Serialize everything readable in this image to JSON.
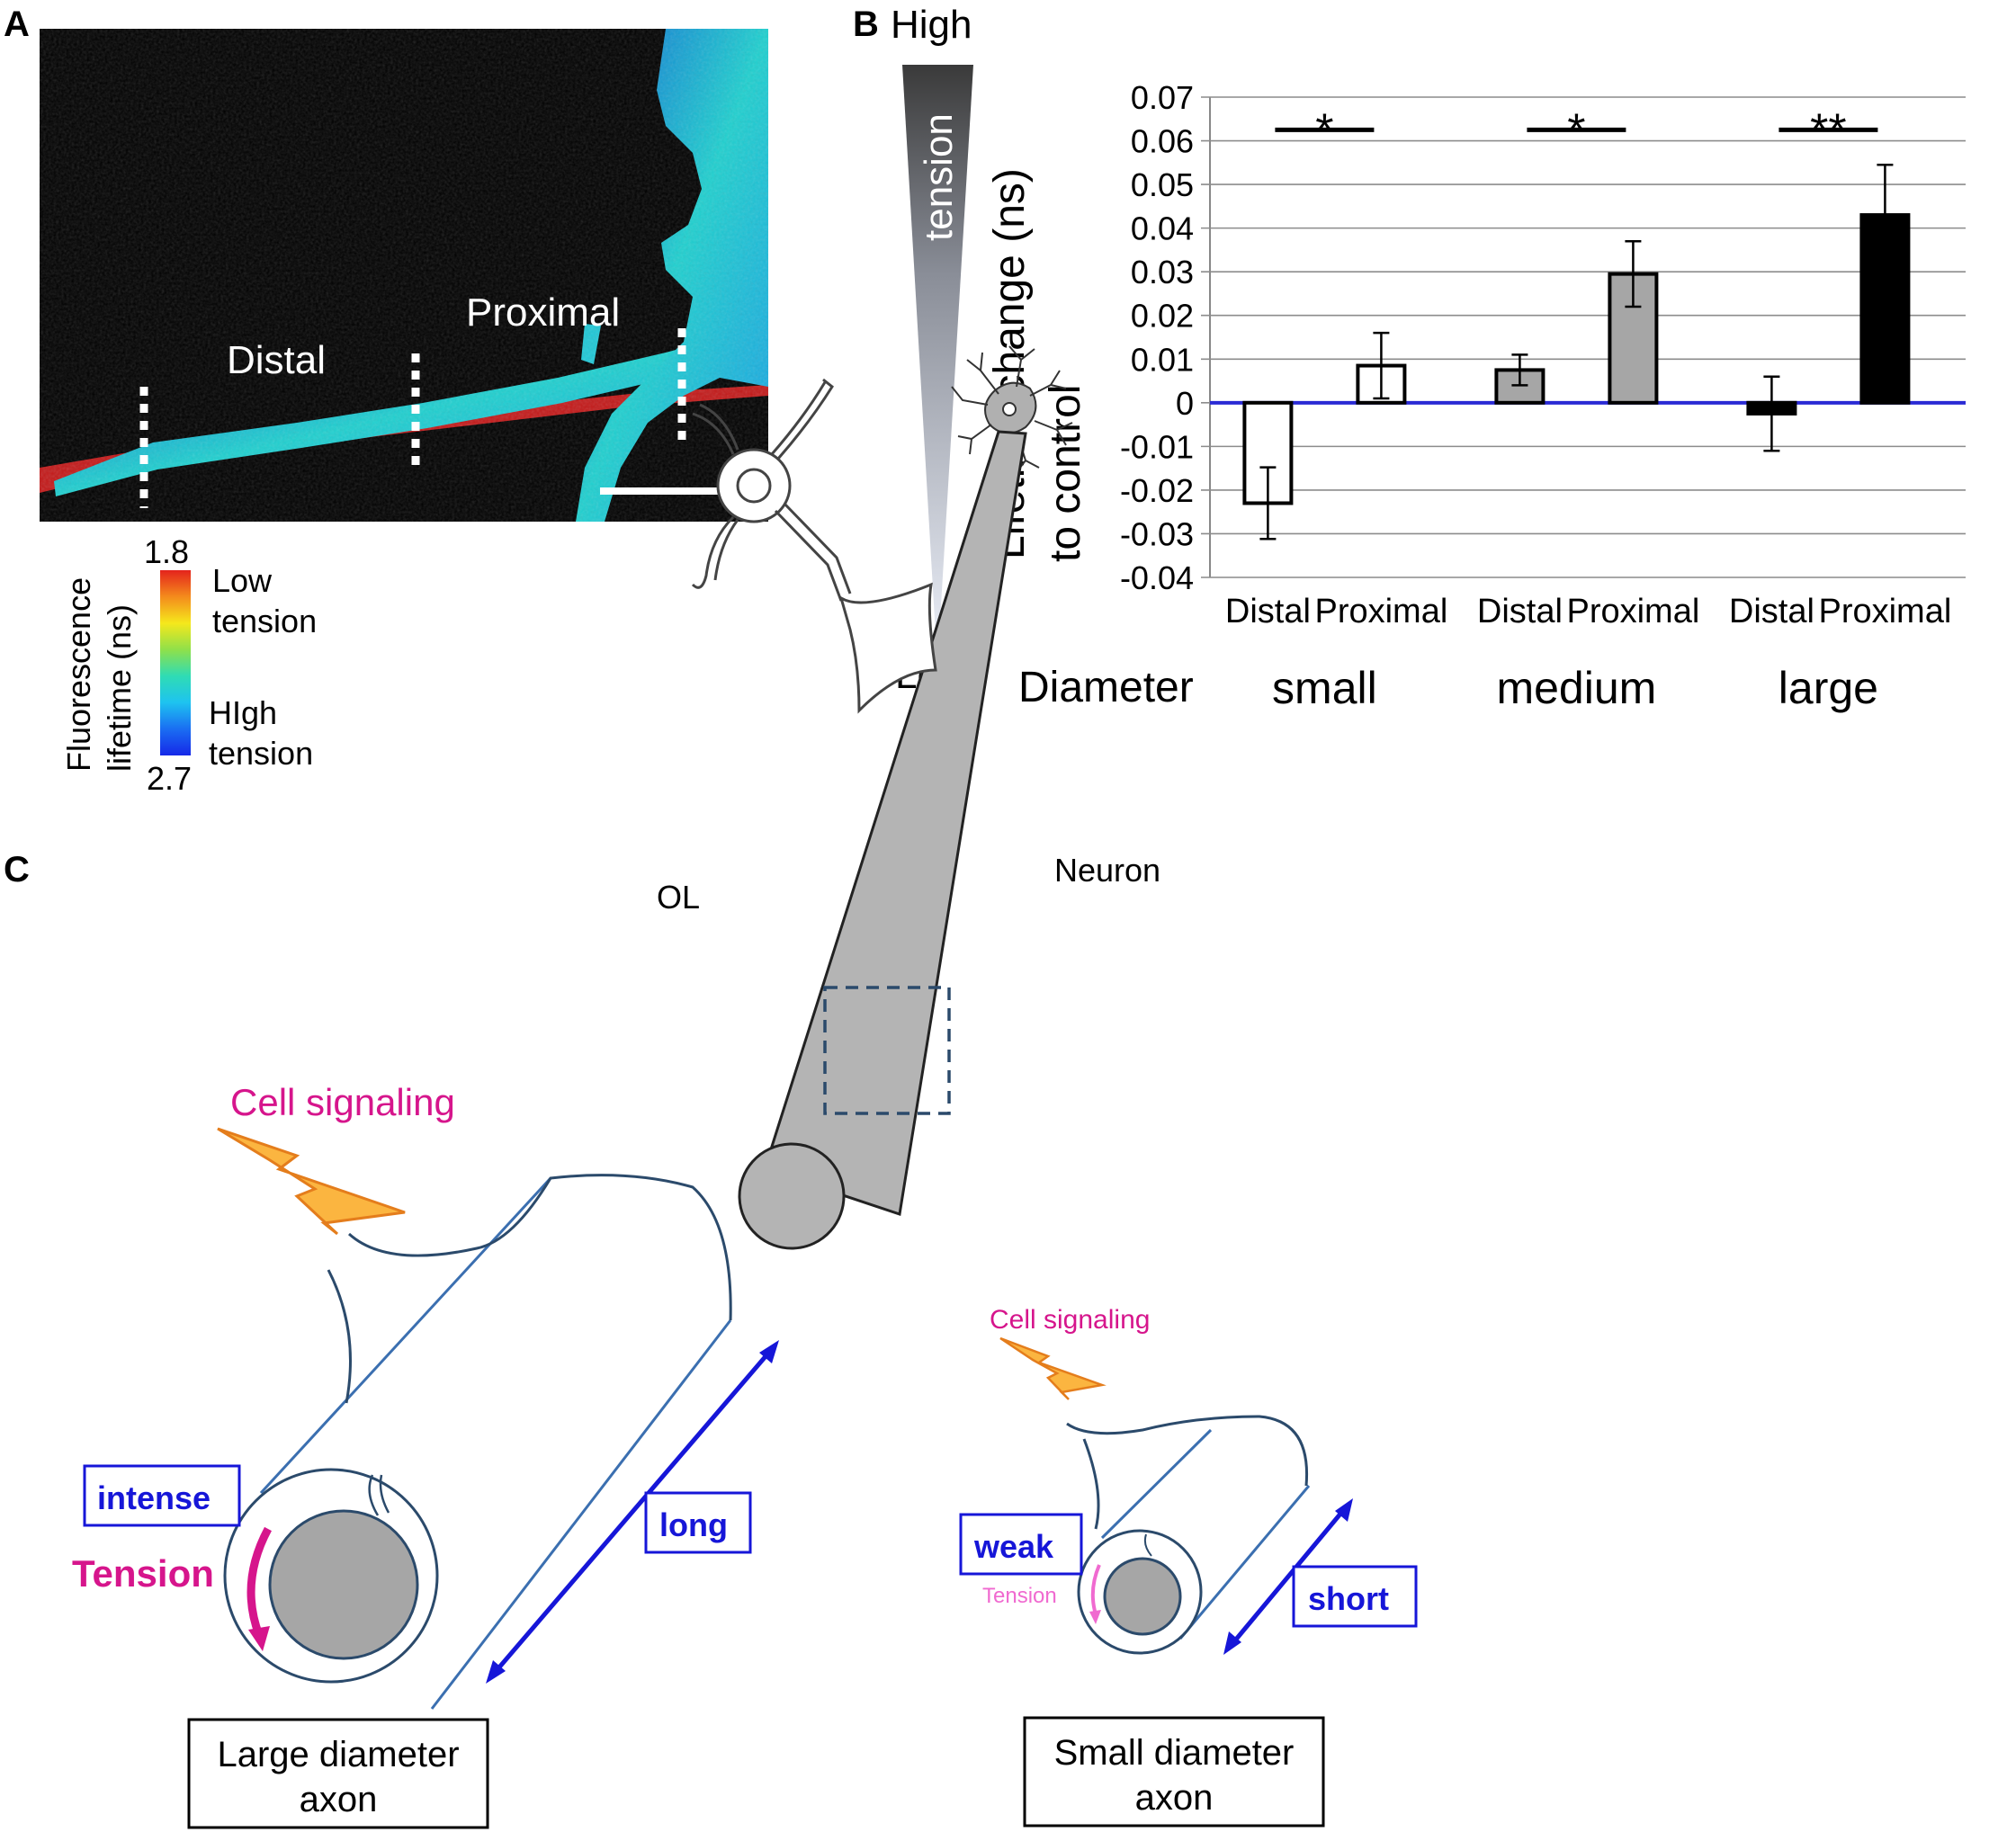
{
  "panels": {
    "a": {
      "letter": "A",
      "label_distal": "Distal",
      "label_proximal": "Proximal",
      "colorbar": {
        "title_line1": "Fluorescence",
        "title_line2": "lifetime (ns)",
        "max": "1.8",
        "min": "2.7",
        "low_line1": "Low",
        "low_line2": "tension",
        "high_line1": "HIgh",
        "high_line2": "tension",
        "colors": [
          "#e4231c",
          "#f48b1c",
          "#f5e81c",
          "#8fe04a",
          "#2fdcb4",
          "#1ec3f0",
          "#1a6ef2",
          "#1628e8"
        ]
      }
    },
    "b": {
      "letter": "B",
      "tension_high": "High",
      "tension_word": "tension",
      "tension_low": "Low",
      "diameter_label": "Diameter"
    },
    "c": {
      "letter": "C",
      "ol_label": "OL",
      "neuron_label": "Neuron",
      "cell_signaling_large": "Cell signaling",
      "cell_signaling_small": "Cell signaling",
      "intense": "intense",
      "tension_large": "Tension",
      "long": "long",
      "large_axon_line1": "Large diameter",
      "large_axon_line2": "axon",
      "weak": "weak",
      "tension_small": "Tension",
      "short": "short",
      "small_axon_line1": "Small diameter",
      "small_axon_line2": "axon",
      "colors": {
        "magenta": "#d6158c",
        "blue": "#1616d8",
        "axon_outline": "#3b6fb0",
        "lightning": "#fbb540"
      }
    }
  },
  "chart_data": {
    "type": "bar",
    "ylabel_line1": "Lifetime change (ns)",
    "ylabel_line2": "to control",
    "ylim": [
      -0.04,
      0.07
    ],
    "yticks": [
      0.07,
      0.06,
      0.05,
      0.04,
      0.03,
      0.02,
      0.01,
      0,
      -0.01,
      -0.02,
      -0.03,
      -0.04
    ],
    "ytick_labels": [
      "0.07",
      "0.06",
      "0.05",
      "0.04",
      "0.03",
      "0.02",
      "0.01",
      "0",
      "-0.01",
      "-0.02",
      "-0.03",
      "-0.04"
    ],
    "grid": true,
    "groups": [
      "small",
      "medium",
      "large"
    ],
    "categories": [
      "Distal",
      "Proximal",
      "Distal",
      "Proximal",
      "Distal",
      "Proximal"
    ],
    "values": [
      -0.023,
      0.0085,
      0.0075,
      0.0295,
      -0.0025,
      0.043
    ],
    "errors": [
      0.0082,
      0.0075,
      0.0035,
      0.0075,
      0.0085,
      0.0115
    ],
    "bar_colors": [
      "#ffffff",
      "#ffffff",
      "#a6a6a6",
      "#a6a6a6",
      "#000000",
      "#000000"
    ],
    "significance": [
      "*",
      "*",
      "**"
    ]
  }
}
